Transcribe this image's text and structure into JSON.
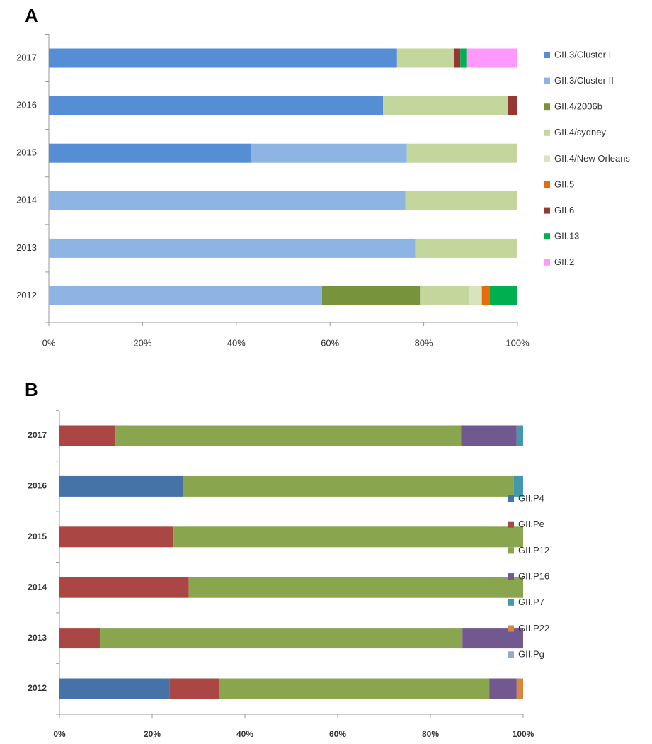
{
  "chart_data": [
    {
      "type": "stacked_bar",
      "orientation": "horizontal",
      "panel_label": "A",
      "categories": [
        "2017",
        "2016",
        "2015",
        "2014",
        "2013",
        "2012"
      ],
      "series": [
        {
          "name": "GII.3/Cluster I",
          "color": "#558ed5",
          "values": [
            74.3,
            71.3,
            43.1,
            0,
            0,
            0
          ]
        },
        {
          "name": "GII.3/Cluster II",
          "color": "#8eb4e3",
          "values": [
            0,
            0,
            33.3,
            76.1,
            78.2,
            58.3
          ]
        },
        {
          "name": "GII.4/2006b",
          "color": "#77933c",
          "values": [
            0,
            0,
            0,
            0,
            0,
            20.9
          ]
        },
        {
          "name": "GII.4/sydney",
          "color": "#c3d69b",
          "values": [
            12.1,
            26.6,
            23.6,
            23.9,
            21.8,
            10.4
          ]
        },
        {
          "name": "GII.4/New Orleans",
          "color": "#d7e4bd",
          "values": [
            0,
            0,
            0,
            0,
            0,
            2.8
          ]
        },
        {
          "name": "GII.5",
          "color": "#e46c0a",
          "values": [
            0,
            0,
            0,
            0,
            0,
            1.6
          ]
        },
        {
          "name": "GII.6",
          "color": "#953735",
          "values": [
            1.4,
            2.1,
            0,
            0,
            0,
            0
          ]
        },
        {
          "name": "GII.13",
          "color": "#00b050",
          "values": [
            1.3,
            0,
            0,
            0,
            0,
            6.0
          ]
        },
        {
          "name": "GII.2",
          "color": "#ff99ff",
          "values": [
            10.9,
            0,
            0,
            0,
            0,
            0
          ]
        }
      ],
      "xlim": [
        0,
        100
      ],
      "xticks": [
        {
          "value": 0,
          "label": "0%"
        },
        {
          "value": 20,
          "label": "20%"
        },
        {
          "value": 40,
          "label": "40%"
        },
        {
          "value": 60,
          "label": "60%"
        },
        {
          "value": 80,
          "label": "80%"
        },
        {
          "value": 100,
          "label": "100%"
        }
      ],
      "legend": "right"
    },
    {
      "type": "stacked_bar",
      "orientation": "horizontal",
      "panel_label": "B",
      "categories": [
        "2017",
        "2016",
        "2015",
        "2014",
        "2013",
        "2012"
      ],
      "series": [
        {
          "name": "GII.P4",
          "color": "#4572a7",
          "values": [
            0,
            26.7,
            0,
            0,
            0,
            23.8
          ]
        },
        {
          "name": "GII.Pe",
          "color": "#aa4643",
          "values": [
            12.1,
            0,
            24.6,
            27.9,
            8.7,
            10.6
          ]
        },
        {
          "name": "GII.P12",
          "color": "#89a54e",
          "values": [
            74.5,
            71.3,
            75.4,
            72.1,
            78.2,
            58.3
          ]
        },
        {
          "name": "GII.P16",
          "color": "#71588f",
          "values": [
            12.0,
            0,
            0,
            0,
            13.1,
            5.9
          ]
        },
        {
          "name": "GII.P7",
          "color": "#4198af",
          "values": [
            1.4,
            2.0,
            0,
            0,
            0,
            0
          ]
        },
        {
          "name": "GII.P22",
          "color": "#db843d",
          "values": [
            0,
            0,
            0,
            0,
            0,
            1.4
          ]
        },
        {
          "name": "GII.Pg",
          "color": "#93a9cf",
          "values": [
            0,
            0,
            0,
            0,
            0,
            0
          ]
        }
      ],
      "xlim": [
        0,
        100
      ],
      "xticks": [
        {
          "value": 0,
          "label": "0%"
        },
        {
          "value": 20,
          "label": "20%"
        },
        {
          "value": 40,
          "label": "40%"
        },
        {
          "value": 60,
          "label": "60%"
        },
        {
          "value": 80,
          "label": "80%"
        },
        {
          "value": 100,
          "label": "100%"
        }
      ],
      "legend": "right"
    }
  ]
}
